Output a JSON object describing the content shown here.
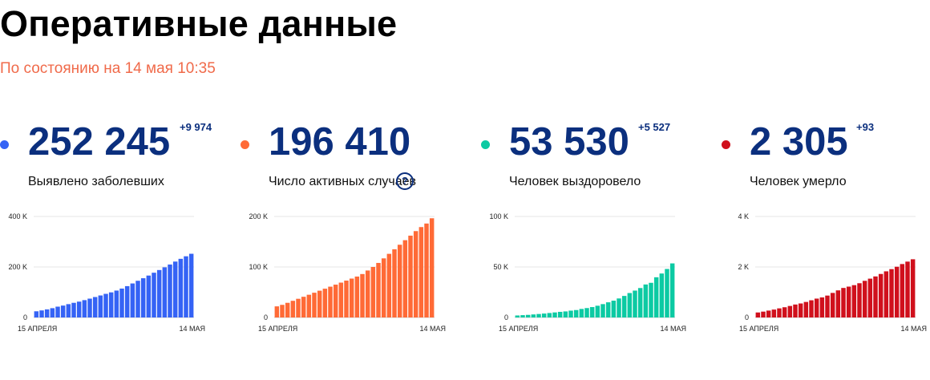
{
  "header": {
    "title": "Оперативные данные",
    "subtitle": "По состоянию на 14 мая 10:35"
  },
  "stats": [
    {
      "value": "252 245",
      "delta": "+9 974",
      "label": "Выявлено заболевших",
      "color": "#3563f5",
      "help": false,
      "chart_data": {
        "type": "bar",
        "x_start": "15 АПРЕЛЯ",
        "x_end": "14 МАЯ",
        "y_ticks": [
          0,
          200000,
          400000
        ],
        "y_tick_labels": [
          "0",
          "200 K",
          "400 K"
        ],
        "ylim": [
          0,
          400000
        ],
        "values": [
          24490,
          27938,
          32008,
          36793,
          42853,
          47121,
          52763,
          57999,
          62773,
          68622,
          74588,
          80949,
          87147,
          93558,
          99399,
          106498,
          114431,
          124054,
          134687,
          145268,
          155370,
          165929,
          177160,
          187859,
          198676,
          209688,
          221344,
          232243,
          242271,
          252245
        ]
      }
    },
    {
      "value": "196 410",
      "delta": "",
      "label": "Число активных случаев",
      "color": "#ff6a36",
      "help": true,
      "chart_data": {
        "type": "bar",
        "x_start": "15 АПРЕЛЯ",
        "x_end": "14 МАЯ",
        "y_ticks": [
          0,
          100000,
          200000
        ],
        "y_tick_labels": [
          "0",
          "100 K",
          "200 K"
        ],
        "ylim": [
          0,
          200000
        ],
        "values": [
          22000,
          25000,
          29000,
          33000,
          37000,
          41000,
          45000,
          49000,
          53000,
          57000,
          61000,
          65000,
          69000,
          73000,
          77000,
          81000,
          86000,
          93000,
          100000,
          108000,
          117000,
          126000,
          135000,
          144000,
          153000,
          162000,
          171000,
          179000,
          186000,
          196410
        ]
      }
    },
    {
      "value": "53 530",
      "delta": "+5 527",
      "label": "Человек выздоровело",
      "color": "#0ccaa3",
      "help": false,
      "chart_data": {
        "type": "bar",
        "x_start": "15 АПРЕЛЯ",
        "x_end": "14 МАЯ",
        "y_ticks": [
          0,
          50000,
          100000
        ],
        "y_tick_labels": [
          "0",
          "50 K",
          "100 K"
        ],
        "ylim": [
          0,
          100000
        ],
        "values": [
          1986,
          2304,
          2590,
          3000,
          3446,
          3873,
          4420,
          5000,
          5568,
          6000,
          6767,
          7346,
          8456,
          9306,
          10286,
          11619,
          13220,
          15013,
          16639,
          18823,
          21327,
          24190,
          26608,
          29145,
          32664,
          34306,
          39801,
          43512,
          48003,
          53530
        ]
      }
    },
    {
      "value": "2 305",
      "delta": "+93",
      "label": "Человек умерло",
      "color": "#d0101c",
      "help": false,
      "chart_data": {
        "type": "bar",
        "x_start": "15 АПРЕЛЯ",
        "x_end": "14 МАЯ",
        "y_ticks": [
          0,
          2000,
          4000
        ],
        "y_tick_labels": [
          "0",
          "2 K",
          "4 K"
        ],
        "ylim": [
          0,
          4000
        ],
        "values": [
          198,
          232,
          273,
          313,
          361,
          405,
          456,
          513,
          555,
          615,
          681,
          747,
          794,
          867,
          972,
          1073,
          1169,
          1222,
          1280,
          1356,
          1451,
          1537,
          1625,
          1723,
          1827,
          1915,
          2009,
          2116,
          2212,
          2305
        ]
      }
    }
  ]
}
